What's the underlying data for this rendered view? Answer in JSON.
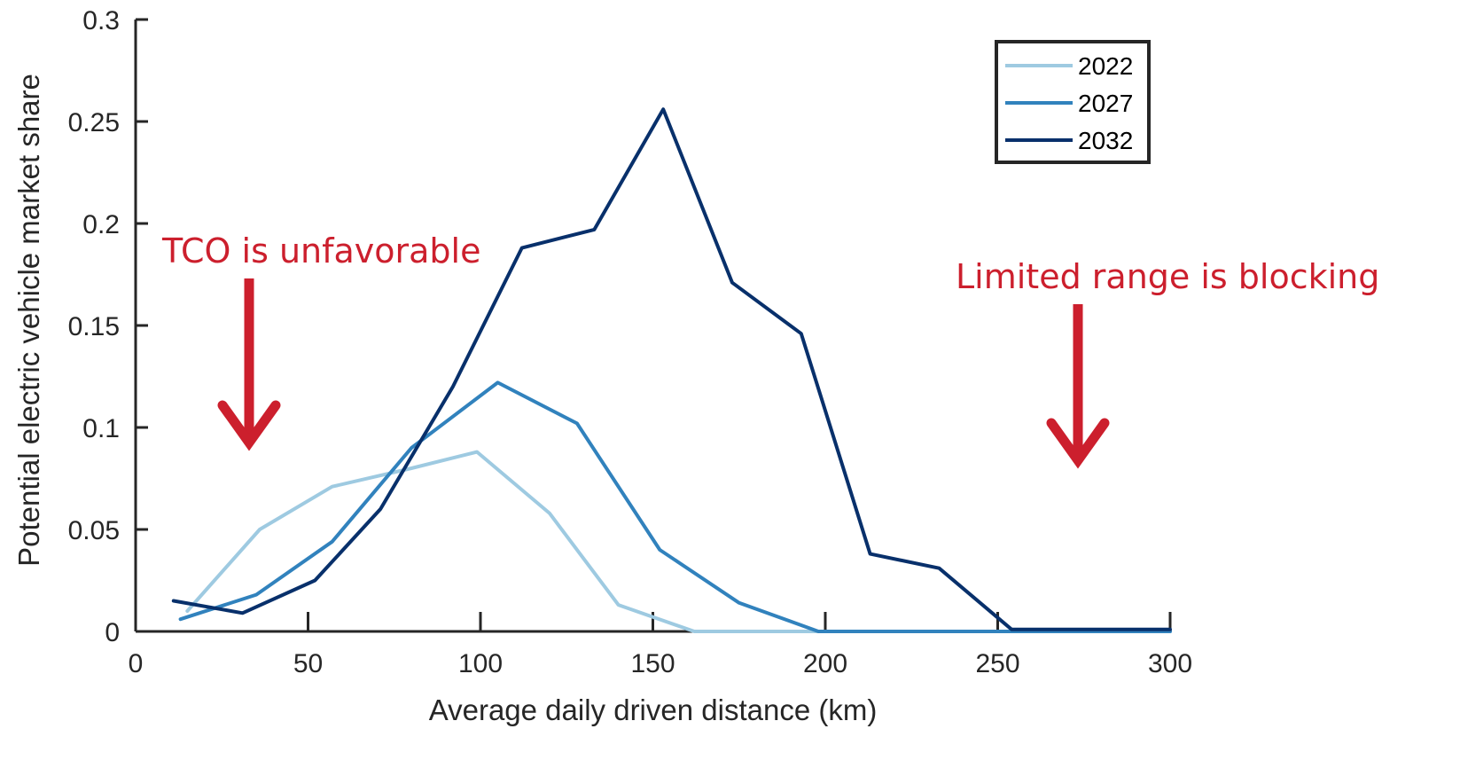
{
  "chart_data": {
    "type": "line",
    "title": "",
    "xlabel": "Average daily driven distance (km)",
    "ylabel": "Potential electric vehicle market share",
    "xlim": [
      0,
      300
    ],
    "ylim": [
      0,
      0.3
    ],
    "xticks": [
      0,
      50,
      100,
      150,
      200,
      250,
      300
    ],
    "yticks": [
      0,
      0.05,
      0.1,
      0.15,
      0.2,
      0.25,
      0.3
    ],
    "xtick_labels": [
      "0",
      "50",
      "100",
      "150",
      "200",
      "250",
      "300"
    ],
    "ytick_labels": [
      "0",
      "0.05",
      "0.1",
      "0.15",
      "0.2",
      "0.25",
      "0.3"
    ],
    "grid": false,
    "legend_position": "top-right",
    "series": [
      {
        "name": "2022",
        "color": "#9ecae1",
        "x": [
          15,
          36,
          57,
          80,
          99,
          120,
          140,
          162,
          200,
          255,
          300
        ],
        "y": [
          0.01,
          0.05,
          0.071,
          0.08,
          0.088,
          0.058,
          0.013,
          0.0,
          0.0,
          0.0,
          0.0
        ]
      },
      {
        "name": "2027",
        "color": "#3182bd",
        "x": [
          13,
          35,
          57,
          80,
          105,
          128,
          152,
          175,
          198,
          255,
          300
        ],
        "y": [
          0.006,
          0.018,
          0.044,
          0.09,
          0.122,
          0.102,
          0.04,
          0.014,
          0.0,
          0.0,
          0.0
        ]
      },
      {
        "name": "2032",
        "color": "#08306b",
        "x": [
          11,
          31,
          52,
          71,
          92,
          112,
          133,
          153,
          173,
          193,
          213,
          233,
          254,
          300
        ],
        "y": [
          0.015,
          0.009,
          0.025,
          0.06,
          0.12,
          0.188,
          0.197,
          0.256,
          0.171,
          0.146,
          0.038,
          0.031,
          0.001,
          0.001
        ]
      }
    ],
    "annotations": [
      {
        "text": "TCO is unfavorable",
        "color": "#cc1f2d"
      },
      {
        "text": "Limited range is blocking",
        "color": "#cc1f2d"
      }
    ]
  }
}
